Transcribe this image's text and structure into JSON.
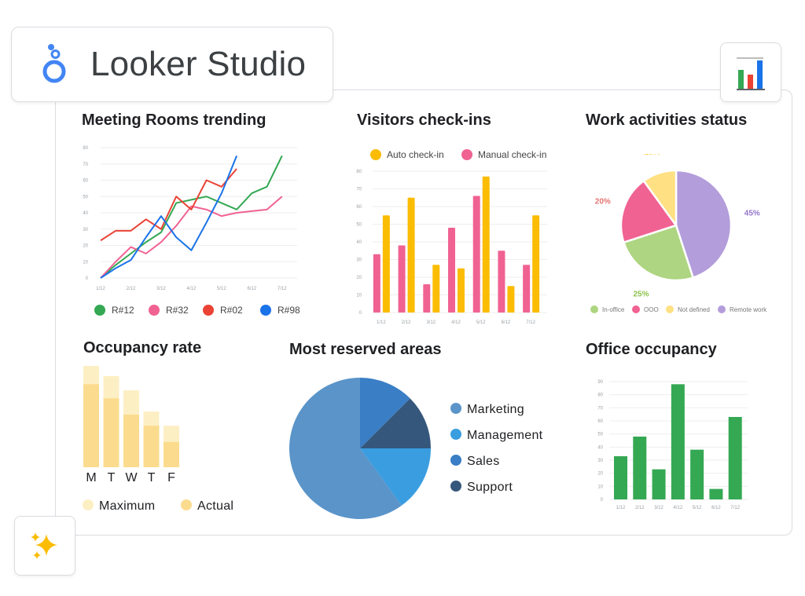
{
  "app": {
    "brand_name": "Looker Studio"
  },
  "icons": {
    "logo": "looker-studio-logo-icon",
    "chart_button": "bar-chart-icon",
    "magic_button": "sparkle-icon"
  },
  "colors": {
    "green": "#34a853",
    "pink": "#f06292",
    "red": "#ea4335",
    "blue": "#1a73e8",
    "yellow": "#fbbc04",
    "office_green": "#34a853"
  },
  "charts": {
    "meeting_rooms": {
      "title": "Meeting Rooms trending"
    },
    "visitors": {
      "title": "Visitors check-ins"
    },
    "work_activities": {
      "title": "Work activities status"
    },
    "occupancy_rate": {
      "title": "Occupancy rate"
    },
    "reserved_areas": {
      "title": "Most reserved areas"
    },
    "office_occupancy": {
      "title": "Office occupancy"
    }
  },
  "chart_data": [
    {
      "id": "meeting_rooms",
      "type": "line",
      "title": "Meeting Rooms trending",
      "x": [
        "1/12",
        "",
        "2/12",
        "",
        "3/12",
        "",
        "4/12",
        "",
        "5/12",
        "",
        "6/12",
        "",
        "7/12",
        ""
      ],
      "x_ticks": [
        "1/12",
        "2/12",
        "3/12",
        "4/12",
        "5/12",
        "6/12",
        "7/12"
      ],
      "ylim": [
        0,
        80
      ],
      "y_ticks": [
        0,
        10,
        20,
        30,
        40,
        50,
        60,
        70,
        80
      ],
      "grid": true,
      "legend_position": "bottom",
      "series": [
        {
          "name": "R#12",
          "color": "#34a853",
          "values": [
            0,
            8,
            15,
            22,
            28,
            46,
            48,
            50,
            46,
            42,
            52,
            56,
            75,
            null
          ]
        },
        {
          "name": "R#32",
          "color": "#f06292",
          "values": [
            0,
            10,
            19,
            15,
            22,
            32,
            44,
            42,
            38,
            40,
            41,
            42,
            50,
            null
          ]
        },
        {
          "name": "R#02",
          "color": "#ea4335",
          "values": [
            23,
            29,
            29,
            36,
            30,
            50,
            42,
            60,
            56,
            67,
            null,
            null,
            null,
            null
          ]
        },
        {
          "name": "R#98",
          "color": "#1a73e8",
          "values": [
            0,
            6,
            11,
            25,
            38,
            25,
            17,
            34,
            52,
            75,
            null,
            null,
            null,
            null
          ]
        }
      ]
    },
    {
      "id": "visitors",
      "type": "bar",
      "title": "Visitors check-ins",
      "categories": [
        "1/12",
        "2/12",
        "3/12",
        "4/12",
        "5/12",
        "6/12",
        "7/12"
      ],
      "ylim": [
        0,
        80
      ],
      "y_ticks": [
        0,
        10,
        20,
        30,
        40,
        50,
        60,
        70,
        80
      ],
      "grid": true,
      "legend_position": "top",
      "series": [
        {
          "name": "Manual check-in",
          "color": "#f06292",
          "values": [
            33,
            38,
            16,
            48,
            66,
            35,
            27
          ]
        },
        {
          "name": "Auto check-in",
          "color": "#fbbc04",
          "values": [
            55,
            65,
            27,
            25,
            77,
            15,
            55
          ]
        }
      ]
    },
    {
      "id": "work_activities",
      "type": "pie",
      "title": "Work activities status",
      "legend_position": "bottom",
      "slices": [
        {
          "label": "Remote work",
          "value": 45,
          "display": "45%",
          "color": "#b39ddb",
          "text_color": "#9575cd"
        },
        {
          "label": "In-office",
          "value": 25,
          "display": "25%",
          "color": "#aed581",
          "text_color": "#8bc34a"
        },
        {
          "label": "OOO",
          "value": 20,
          "display": "20%",
          "color": "#f06292",
          "text_color": "#e57373"
        },
        {
          "label": "Not defined",
          "value": 10,
          "display": "10%",
          "color": "#ffe082",
          "text_color": "#ffd54f"
        }
      ],
      "legend": [
        {
          "label": "In-office",
          "color": "#aed581"
        },
        {
          "label": "OOO",
          "color": "#f06292"
        },
        {
          "label": "Not defined",
          "color": "#ffe082"
        },
        {
          "label": "Remote work",
          "color": "#b39ddb"
        }
      ]
    },
    {
      "id": "occupancy_rate",
      "type": "bar",
      "title": "Occupancy rate",
      "categories": [
        "M",
        "T",
        "W",
        "T",
        "F"
      ],
      "legend_position": "bottom",
      "series": [
        {
          "name": "Maximum",
          "color": "#fdefc4",
          "values": [
            100,
            90,
            76,
            55,
            41
          ]
        },
        {
          "name": "Actual",
          "color": "#fbdc8e",
          "values": [
            82,
            68,
            52,
            41,
            25
          ]
        }
      ]
    },
    {
      "id": "reserved_areas",
      "type": "pie",
      "title": "Most reserved areas",
      "legend_position": "right",
      "slices": [
        {
          "label": "Sales",
          "value": 12.5,
          "color": "#3a7ec5"
        },
        {
          "label": "Support",
          "value": 12.5,
          "color": "#35577c"
        },
        {
          "label": "Management",
          "value": 15,
          "color": "#3a9de0"
        },
        {
          "label": "Marketing",
          "value": 60,
          "color": "#5a94c9"
        }
      ],
      "legend": [
        {
          "label": "Marketing",
          "color": "#5a94c9"
        },
        {
          "label": "Management",
          "color": "#3a9de0"
        },
        {
          "label": "Sales",
          "color": "#3a7ec5"
        },
        {
          "label": "Support",
          "color": "#35577c"
        }
      ]
    },
    {
      "id": "office_occupancy",
      "type": "bar",
      "title": "Office occupancy",
      "categories": [
        "1/12",
        "2/12",
        "3/12",
        "4/12",
        "5/12",
        "6/12",
        "7/12"
      ],
      "ylim": [
        0,
        90
      ],
      "y_ticks": [
        0,
        10,
        20,
        30,
        40,
        50,
        60,
        70,
        80,
        90
      ],
      "grid": true,
      "series": [
        {
          "name": "",
          "color": "#34a853",
          "values": [
            33,
            48,
            23,
            88,
            38,
            8,
            63
          ]
        }
      ]
    }
  ]
}
